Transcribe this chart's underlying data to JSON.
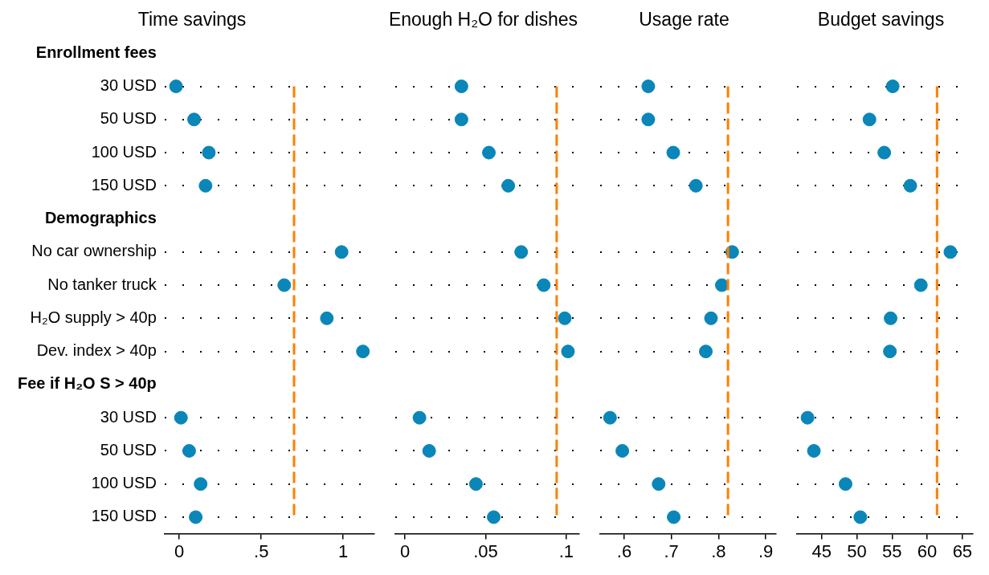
{
  "chart_data": [
    {
      "type": "scatter",
      "title": "Time savings",
      "orientation": "horizontal",
      "marker": "circle",
      "grid": "y",
      "color": "#0a86b8",
      "categories": [
        "Enrollment fees",
        "30 USD",
        "50 USD",
        "100 USD",
        "150 USD",
        "Demographics",
        "No car ownership",
        "No tanker truck",
        "H₂O supply > 40p",
        "Dev. index > 40p",
        "Fee if H₂O S > 40p",
        "30 USD",
        "50 USD",
        "100 USD",
        "150 USD"
      ],
      "values": [
        null,
        -0.02,
        0.09,
        0.18,
        0.16,
        null,
        0.99,
        0.64,
        0.9,
        1.12,
        null,
        0.01,
        0.06,
        0.13,
        0.1
      ],
      "xlim": [
        -0.09,
        1.19
      ],
      "xticks": [
        0,
        {
          "value": 0.5,
          "label": ".5"
        },
        1
      ],
      "ref_lines": [
        {
          "axis": "x",
          "value": 0.7,
          "color": "#ff7f00",
          "line_style": "dashed"
        }
      ]
    },
    {
      "type": "scatter",
      "title": "Enough H₂O for dishes",
      "orientation": "horizontal",
      "marker": "circle",
      "grid": "y",
      "color": "#0a86b8",
      "tick_labels": "x",
      "categories": [
        null,
        null,
        null,
        null,
        null,
        null,
        null,
        null,
        null,
        null,
        null,
        null,
        null,
        null,
        null
      ],
      "values": [
        null,
        0.035,
        0.035,
        0.052,
        0.064,
        null,
        0.072,
        0.086,
        0.099,
        0.101,
        null,
        0.009,
        0.015,
        0.044,
        0.055
      ],
      "xlim": [
        -0.006,
        0.108
      ],
      "xticks": [
        0,
        {
          "value": 0.05,
          "label": ".05"
        },
        {
          "value": 0.1,
          "label": ".1"
        }
      ],
      "ref_lines": [
        {
          "axis": "x",
          "value": 0.094,
          "color": "#ff7f00",
          "line_style": "dashed"
        }
      ]
    },
    {
      "type": "scatter",
      "title": "Usage rate",
      "orientation": "horizontal",
      "marker": "circle",
      "grid": "y",
      "color": "#0a86b8",
      "tick_labels": "x",
      "categories": [
        null,
        null,
        null,
        null,
        null,
        null,
        null,
        null,
        null,
        null,
        null,
        null,
        null,
        null,
        null
      ],
      "values": [
        null,
        0.651,
        0.651,
        0.704,
        0.752,
        null,
        0.829,
        0.807,
        0.784,
        0.773,
        null,
        0.57,
        0.596,
        0.673,
        0.705
      ],
      "xlim": [
        0.549,
        0.922
      ],
      "xticks": [
        {
          "value": 0.6,
          "label": ".6"
        },
        {
          "value": 0.7,
          "label": ".7"
        },
        {
          "value": 0.8,
          "label": ".8"
        },
        {
          "value": 0.9,
          "label": ".9"
        }
      ],
      "ref_lines": [
        {
          "axis": "x",
          "value": 0.82,
          "color": "#ff7f00",
          "line_style": "dashed"
        }
      ]
    },
    {
      "type": "scatter",
      "title": "Budget savings",
      "orientation": "horizontal",
      "marker": "circle",
      "grid": "y",
      "color": "#0a86b8",
      "tick_labels": "x",
      "categories": [
        null,
        null,
        null,
        null,
        null,
        null,
        null,
        null,
        null,
        null,
        null,
        null,
        null,
        null,
        null
      ],
      "values": [
        null,
        55.1,
        51.8,
        53.9,
        57.6,
        null,
        63.3,
        59.1,
        54.8,
        54.7,
        null,
        43.0,
        43.9,
        48.4,
        50.5
      ],
      "xlim": [
        41.5,
        66.5
      ],
      "xticks": [
        45,
        50,
        55,
        60,
        65
      ],
      "ref_lines": [
        {
          "axis": "x",
          "value": 61.4,
          "color": "#ff7f00",
          "line_style": "dashed"
        }
      ]
    }
  ]
}
